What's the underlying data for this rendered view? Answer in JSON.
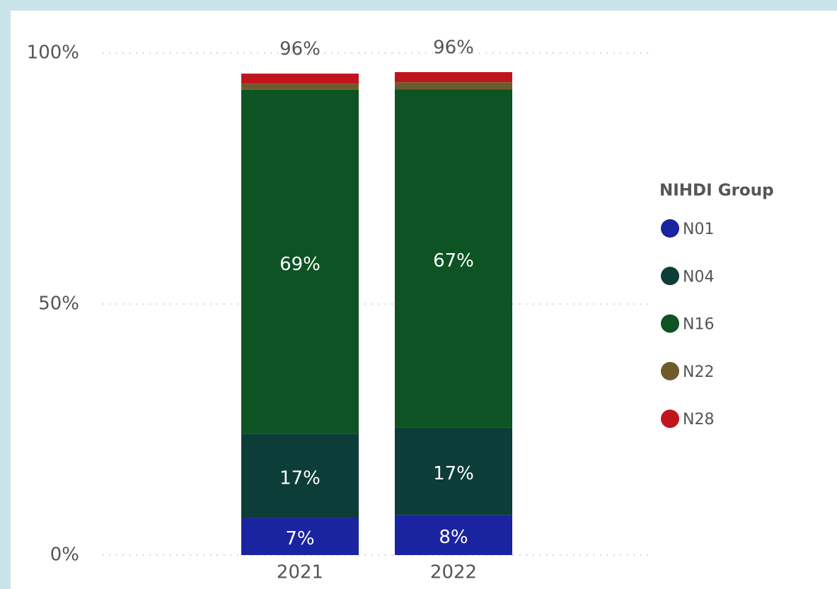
{
  "chart_data": {
    "type": "stacked_bar",
    "categories": [
      "2021",
      "2022"
    ],
    "series": [
      {
        "name": "N01",
        "color": "#1a23a0",
        "values": [
          7.4,
          8.0
        ],
        "value_labels": [
          "7%",
          "8%"
        ]
      },
      {
        "name": "N04",
        "color": "#0d3d38",
        "values": [
          16.7,
          17.4
        ],
        "value_labels": [
          "17%",
          "17%"
        ]
      },
      {
        "name": "N16",
        "color": "#0d5323",
        "values": [
          68.6,
          67.4
        ],
        "value_labels": [
          "69%",
          "67%"
        ]
      },
      {
        "name": "N22",
        "color": "#6e5b2c",
        "values": [
          1.2,
          1.4
        ],
        "value_labels": [
          null,
          null
        ]
      },
      {
        "name": "N28",
        "color": "#c0141e",
        "values": [
          2.0,
          2.0
        ],
        "value_labels": [
          null,
          null
        ]
      }
    ],
    "totals": {
      "values": [
        95.9,
        96.2
      ],
      "value_labels": [
        "96%",
        "96%"
      ]
    },
    "ylim": [
      0,
      100
    ],
    "yticks": [
      {
        "value": 0,
        "label": "0%"
      },
      {
        "value": 50,
        "label": "50%"
      },
      {
        "value": 100,
        "label": "100%"
      }
    ],
    "grid": true,
    "legend": {
      "title": "NIHDI Group",
      "position": "right"
    }
  }
}
